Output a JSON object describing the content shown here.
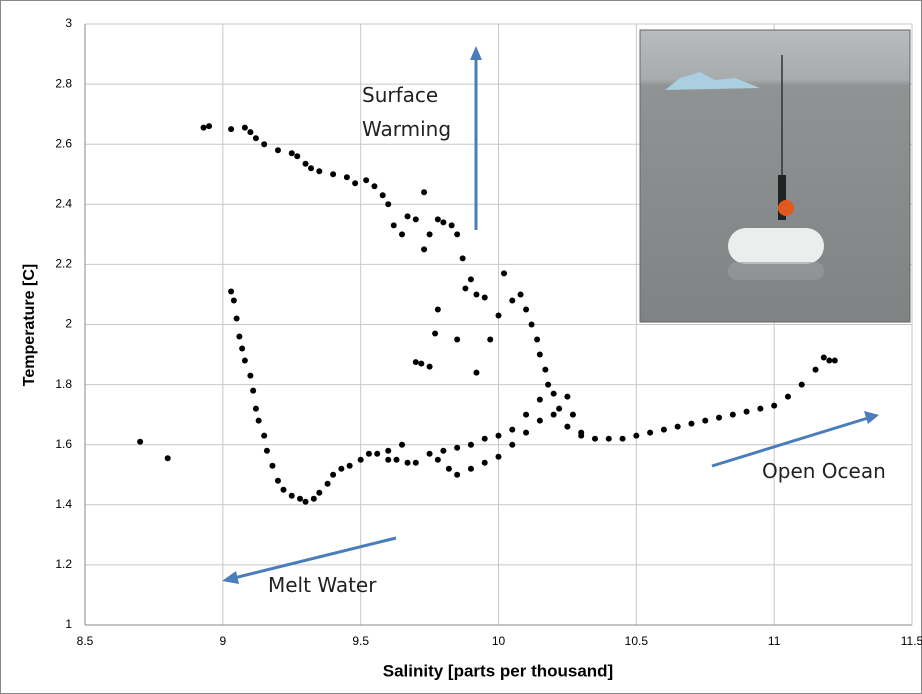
{
  "chart_data": {
    "type": "scatter",
    "x_label": "Salinity [parts per thousand]",
    "y_label": "Temperature [C]",
    "xlim": [
      8.5,
      11.5
    ],
    "xticks": [
      8.5,
      9,
      9.5,
      10,
      10.5,
      11,
      11.5
    ],
    "ylim": [
      1,
      3
    ],
    "yticks": [
      1,
      1.2,
      1.4,
      1.6,
      1.8,
      2,
      2.2,
      2.4,
      2.6,
      2.8,
      3
    ],
    "grid": true,
    "color": "#000000",
    "annotations": [
      {
        "text": "Surface Warming"
      },
      {
        "text": "Melt Water"
      },
      {
        "text": "Open Ocean"
      }
    ],
    "x": [
      8.7,
      8.8,
      8.93,
      8.95,
      9.03,
      9.08,
      9.1,
      9.12,
      9.15,
      9.2,
      9.25,
      9.27,
      9.3,
      9.32,
      9.35,
      9.4,
      9.45,
      9.48,
      9.52,
      9.55,
      9.58,
      9.6,
      9.62,
      9.65,
      9.67,
      9.7,
      9.73,
      9.75,
      9.78,
      9.8,
      9.83,
      9.85,
      9.87,
      9.9,
      9.92,
      9.95,
      9.78,
      9.77,
      9.72,
      9.7,
      9.75,
      9.85,
      9.92,
      9.97,
      10.0,
      10.02,
      10.05,
      10.08,
      10.1,
      10.12,
      10.14,
      10.15,
      10.17,
      9.73,
      9.88,
      9.03,
      9.04,
      9.05,
      9.06,
      9.07,
      9.08,
      9.1,
      9.11,
      9.12,
      9.13,
      9.15,
      9.16,
      9.18,
      9.2,
      9.22,
      9.25,
      9.28,
      9.3,
      9.33,
      9.35,
      9.38,
      9.4,
      9.43,
      9.46,
      9.5,
      9.53,
      9.56,
      9.6,
      9.63,
      9.67,
      9.7,
      9.75,
      9.8,
      9.85,
      9.9,
      9.95,
      10.0,
      10.05,
      10.1,
      10.15,
      10.18,
      10.2,
      10.22,
      10.25,
      10.27,
      10.3,
      10.35,
      10.4,
      10.45,
      10.5,
      10.55,
      10.6,
      10.65,
      10.7,
      10.75,
      10.8,
      10.85,
      10.9,
      10.95,
      11.0,
      11.05,
      11.1,
      11.15,
      11.18,
      11.2,
      11.22,
      9.85,
      9.9,
      9.95,
      10.0,
      10.05,
      10.1,
      10.15,
      10.2,
      10.25,
      10.3,
      9.78,
      9.82,
      9.65,
      9.6
    ],
    "y": [
      1.61,
      1.555,
      2.655,
      2.66,
      2.65,
      2.655,
      2.64,
      2.62,
      2.6,
      2.58,
      2.57,
      2.56,
      2.535,
      2.52,
      2.51,
      2.5,
      2.49,
      2.47,
      2.48,
      2.46,
      2.43,
      2.4,
      2.33,
      2.3,
      2.36,
      2.35,
      2.44,
      2.3,
      2.35,
      2.34,
      2.33,
      2.3,
      2.22,
      2.15,
      2.1,
      2.09,
      2.05,
      1.97,
      1.87,
      1.875,
      1.86,
      1.95,
      1.84,
      1.95,
      2.03,
      2.17,
      2.08,
      2.1,
      2.05,
      2.0,
      1.95,
      1.9,
      1.85,
      2.25,
      2.12,
      2.11,
      2.08,
      2.02,
      1.96,
      1.92,
      1.88,
      1.83,
      1.78,
      1.72,
      1.68,
      1.63,
      1.58,
      1.53,
      1.48,
      1.45,
      1.43,
      1.42,
      1.41,
      1.42,
      1.44,
      1.47,
      1.5,
      1.52,
      1.53,
      1.55,
      1.57,
      1.57,
      1.55,
      1.55,
      1.54,
      1.54,
      1.57,
      1.58,
      1.59,
      1.6,
      1.62,
      1.63,
      1.65,
      1.7,
      1.75,
      1.8,
      1.77,
      1.72,
      1.76,
      1.7,
      1.64,
      1.62,
      1.62,
      1.62,
      1.63,
      1.64,
      1.65,
      1.66,
      1.67,
      1.68,
      1.69,
      1.7,
      1.71,
      1.72,
      1.73,
      1.76,
      1.8,
      1.85,
      1.89,
      1.88,
      1.88,
      1.5,
      1.52,
      1.54,
      1.56,
      1.6,
      1.64,
      1.68,
      1.7,
      1.66,
      1.63,
      1.55,
      1.52,
      1.6,
      1.58
    ]
  }
}
